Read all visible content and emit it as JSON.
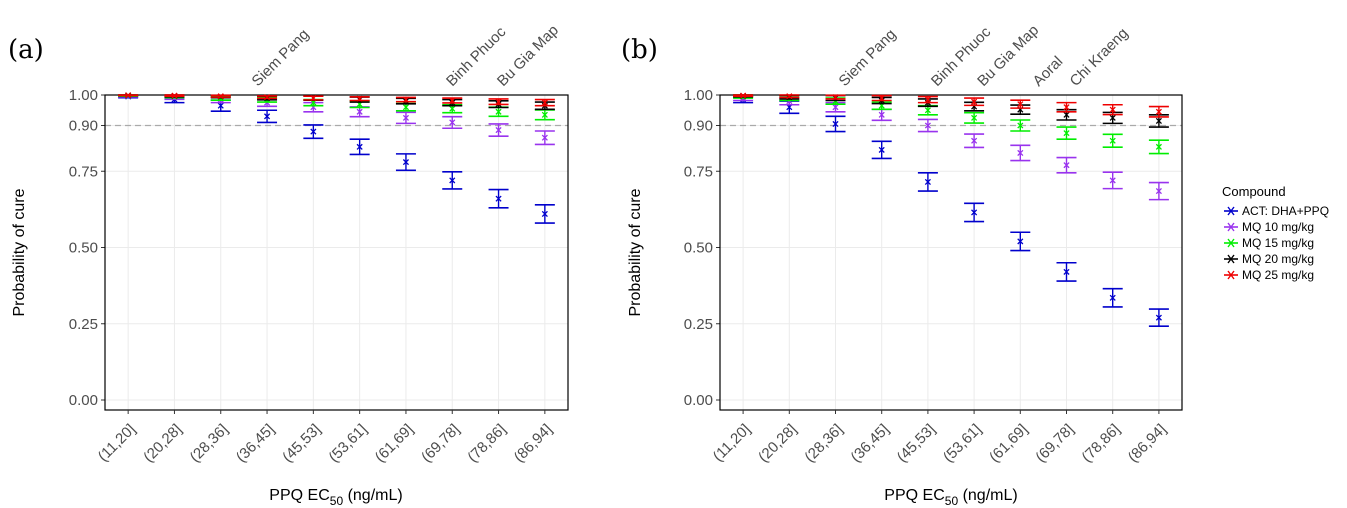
{
  "figure": {
    "x_axis_title": "PPQ EC",
    "x_axis_title_sub": "50",
    "x_axis_title_unit": " (ng/mL)",
    "y_axis_title": "Probability of cure",
    "reference_line": 0.9
  },
  "legend": {
    "title": "Compound",
    "items": [
      {
        "label": "ACT: DHA+PPQ",
        "color": "#0000cc"
      },
      {
        "label": "MQ 10 mg/kg",
        "color": "#9933ee"
      },
      {
        "label": "MQ 15 mg/kg",
        "color": "#00ee00"
      },
      {
        "label": "MQ 20 mg/kg",
        "color": "#000000"
      },
      {
        "label": "MQ 25 mg/kg",
        "color": "#ee0000"
      }
    ]
  },
  "chart_data": [
    {
      "type": "scatter",
      "panel_label": "(a)",
      "categories": [
        "(11,20]",
        "(20,28]",
        "(28,36]",
        "(36,45]",
        "(45,53]",
        "(53,61]",
        "(61,69]",
        "(69,78]",
        "(78,86]",
        "(86,94]"
      ],
      "y_ticks": [
        "0.00",
        "0.25",
        "0.50",
        "0.75",
        "0.90",
        "1.00"
      ],
      "y_tick_values": [
        0.0,
        0.25,
        0.5,
        0.75,
        0.9,
        1.0
      ],
      "ylim": [
        0,
        1
      ],
      "site_labels": [
        {
          "text": "Siem Pang",
          "category_index": 2.8
        },
        {
          "text": "Binh Phuoc",
          "category_index": 7.0
        },
        {
          "text": "Bu Gia Map",
          "category_index": 8.1
        }
      ],
      "series": [
        {
          "name": "ACT: DHA+PPQ",
          "values": [
            0.995,
            0.985,
            0.965,
            0.93,
            0.88,
            0.83,
            0.78,
            0.72,
            0.66,
            0.61
          ],
          "err": [
            0.004,
            0.01,
            0.018,
            0.02,
            0.022,
            0.025,
            0.027,
            0.028,
            0.03,
            0.03
          ]
        },
        {
          "name": "MQ 10 mg/kg",
          "values": [
            0.997,
            0.992,
            0.985,
            0.975,
            0.96,
            0.945,
            0.925,
            0.91,
            0.885,
            0.86
          ],
          "err": [
            0.003,
            0.006,
            0.01,
            0.012,
            0.015,
            0.016,
            0.018,
            0.019,
            0.02,
            0.022
          ]
        },
        {
          "name": "MQ 15 mg/kg",
          "values": [
            0.998,
            0.995,
            0.99,
            0.985,
            0.975,
            0.97,
            0.96,
            0.955,
            0.945,
            0.935
          ],
          "err": [
            0.002,
            0.004,
            0.007,
            0.008,
            0.01,
            0.011,
            0.012,
            0.013,
            0.015,
            0.016
          ]
        },
        {
          "name": "MQ 20 mg/kg",
          "values": [
            0.999,
            0.997,
            0.995,
            0.99,
            0.99,
            0.985,
            0.98,
            0.975,
            0.97,
            0.965
          ],
          "err": [
            0.001,
            0.003,
            0.004,
            0.006,
            0.007,
            0.008,
            0.009,
            0.01,
            0.011,
            0.012
          ]
        },
        {
          "name": "MQ 25 mg/kg",
          "values": [
            0.999,
            0.998,
            0.996,
            0.993,
            0.99,
            0.988,
            0.985,
            0.982,
            0.978,
            0.975
          ],
          "err": [
            0.001,
            0.002,
            0.003,
            0.004,
            0.006,
            0.006,
            0.007,
            0.008,
            0.009,
            0.01
          ]
        }
      ]
    },
    {
      "type": "scatter",
      "panel_label": "(b)",
      "categories": [
        "(11,20]",
        "(20,28]",
        "(28,36]",
        "(36,45]",
        "(45,53]",
        "(53,61]",
        "(61,69]",
        "(69,78]",
        "(78,86]",
        "(86,94]"
      ],
      "y_ticks": [
        "0.00",
        "0.25",
        "0.50",
        "0.75",
        "0.90",
        "1.00"
      ],
      "y_tick_values": [
        0.0,
        0.25,
        0.5,
        0.75,
        0.9,
        1.0
      ],
      "ylim": [
        0,
        1
      ],
      "site_labels": [
        {
          "text": "Siem Pang",
          "category_index": 2.2
        },
        {
          "text": "Binh Phuoc",
          "category_index": 4.2
        },
        {
          "text": "Bu Gia Map",
          "category_index": 5.2
        },
        {
          "text": "Aoral",
          "category_index": 6.4
        },
        {
          "text": "Chi Kraeng",
          "category_index": 7.2
        }
      ],
      "series": [
        {
          "name": "ACT: DHA+PPQ",
          "values": [
            0.985,
            0.96,
            0.905,
            0.82,
            0.715,
            0.615,
            0.52,
            0.42,
            0.335,
            0.27
          ],
          "err": [
            0.01,
            0.02,
            0.025,
            0.028,
            0.03,
            0.03,
            0.03,
            0.03,
            0.03,
            0.028
          ]
        },
        {
          "name": "MQ 10 mg/kg",
          "values": [
            0.99,
            0.98,
            0.96,
            0.935,
            0.9,
            0.85,
            0.81,
            0.77,
            0.72,
            0.685
          ],
          "err": [
            0.008,
            0.012,
            0.015,
            0.018,
            0.02,
            0.022,
            0.025,
            0.025,
            0.027,
            0.028
          ]
        },
        {
          "name": "MQ 15 mg/kg",
          "values": [
            0.995,
            0.99,
            0.98,
            0.965,
            0.95,
            0.925,
            0.9,
            0.875,
            0.85,
            0.83
          ],
          "err": [
            0.005,
            0.008,
            0.01,
            0.012,
            0.015,
            0.017,
            0.018,
            0.02,
            0.021,
            0.022
          ]
        },
        {
          "name": "MQ 20 mg/kg",
          "values": [
            0.997,
            0.993,
            0.99,
            0.982,
            0.975,
            0.962,
            0.952,
            0.935,
            0.925,
            0.915
          ],
          "err": [
            0.003,
            0.006,
            0.008,
            0.01,
            0.012,
            0.014,
            0.015,
            0.017,
            0.018,
            0.02
          ]
        },
        {
          "name": "MQ 25 mg/kg",
          "values": [
            0.998,
            0.996,
            0.993,
            0.99,
            0.985,
            0.978,
            0.97,
            0.96,
            0.952,
            0.945
          ],
          "err": [
            0.002,
            0.004,
            0.006,
            0.008,
            0.01,
            0.012,
            0.013,
            0.015,
            0.016,
            0.017
          ]
        }
      ]
    }
  ]
}
